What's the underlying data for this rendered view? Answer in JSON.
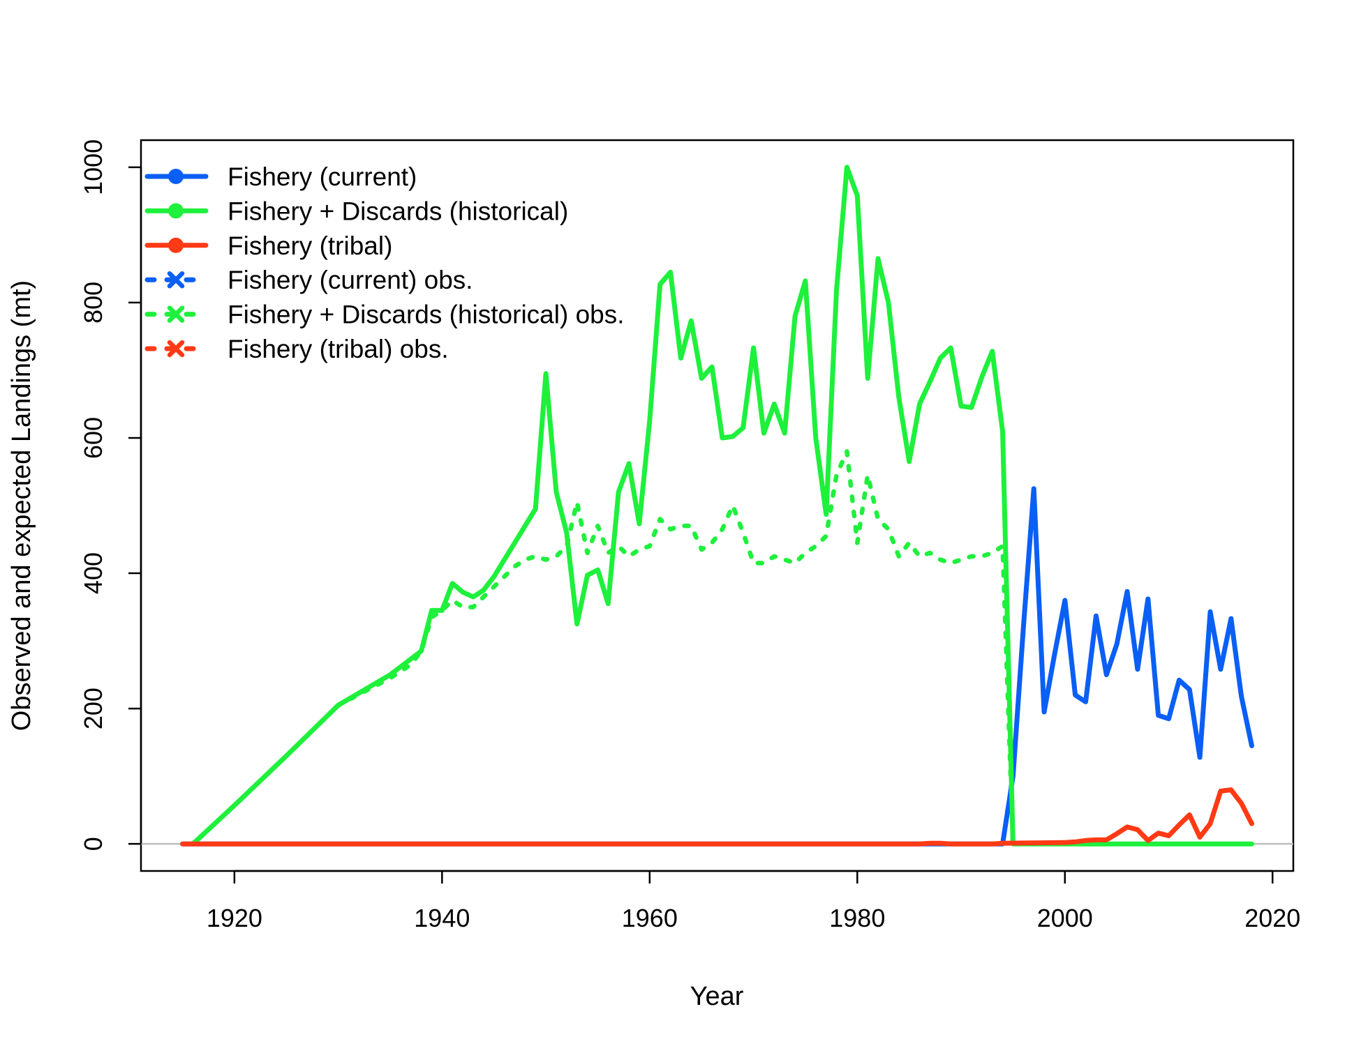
{
  "chart_data": {
    "type": "line",
    "title": "",
    "xlabel": "Year",
    "ylabel": "Observed and expected Landings (mt)",
    "xlim": [
      1911,
      2022
    ],
    "ylim": [
      -40,
      1040
    ],
    "xticks": [
      1920,
      1940,
      1960,
      1980,
      2000,
      2020
    ],
    "yticks": [
      0,
      200,
      400,
      600,
      800,
      1000
    ],
    "grid": false,
    "zero_line": true,
    "legend_position": "top-left",
    "series": [
      {
        "name": "Fishery (current)",
        "style": "solid",
        "color": "#0A5FF5",
        "x": [
          1915,
          1994,
          1995,
          1996,
          1997,
          1998,
          1999,
          2000,
          2001,
          2002,
          2003,
          2004,
          2005,
          2006,
          2007,
          2008,
          2009,
          2010,
          2011,
          2012,
          2013,
          2014,
          2015,
          2016,
          2017,
          2018
        ],
        "y": [
          0,
          0,
          100,
          320,
          525,
          195,
          280,
          360,
          220,
          210,
          337,
          250,
          295,
          373,
          258,
          362,
          190,
          185,
          242,
          228,
          128,
          343,
          258,
          333,
          218,
          145
        ]
      },
      {
        "name": "Fishery + Discards (historical)",
        "style": "solid",
        "color": "#1EF03C",
        "x": [
          1916,
          1920,
          1925,
          1930,
          1935,
          1938,
          1939,
          1940,
          1941,
          1942,
          1943,
          1944,
          1945,
          1946,
          1947,
          1948,
          1949,
          1950,
          1951,
          1952,
          1953,
          1954,
          1955,
          1956,
          1957,
          1958,
          1959,
          1960,
          1961,
          1962,
          1963,
          1964,
          1965,
          1966,
          1967,
          1968,
          1969,
          1970,
          1971,
          1972,
          1973,
          1974,
          1975,
          1976,
          1977,
          1978,
          1979,
          1980,
          1981,
          1982,
          1983,
          1984,
          1985,
          1986,
          1987,
          1988,
          1989,
          1990,
          1991,
          1992,
          1993,
          1994,
          1995,
          2018
        ],
        "y": [
          0,
          57,
          130,
          205,
          250,
          285,
          345,
          345,
          385,
          372,
          365,
          375,
          395,
          420,
          445,
          470,
          495,
          695,
          520,
          460,
          325,
          397,
          405,
          355,
          520,
          562,
          473,
          625,
          827,
          845,
          718,
          773,
          688,
          705,
          600,
          602,
          615,
          733,
          607,
          650,
          607,
          780,
          832,
          600,
          487,
          818,
          1000,
          958,
          688,
          865,
          800,
          660,
          565,
          650,
          683,
          718,
          733,
          647,
          645,
          690,
          728,
          610,
          0,
          0
        ]
      },
      {
        "name": "Fishery (tribal)",
        "style": "solid",
        "color": "#FF3A14",
        "x": [
          1915,
          1986,
          1987,
          1988,
          1989,
          1993,
          1994,
          2000,
          2001,
          2002,
          2003,
          2004,
          2005,
          2006,
          2007,
          2008,
          2009,
          2010,
          2011,
          2012,
          2013,
          2014,
          2015,
          2016,
          2017,
          2018
        ],
        "y": [
          0,
          0,
          1,
          1,
          0,
          0,
          1,
          2,
          3,
          5,
          6,
          6,
          15,
          25,
          21,
          5,
          16,
          12,
          28,
          43,
          10,
          30,
          78,
          80,
          60,
          30
        ]
      },
      {
        "name": "Fishery (current) obs.",
        "style": "dotted",
        "color": "#0A5FF5",
        "x": [],
        "y": []
      },
      {
        "name": "Fishery + Discards (historical) obs.",
        "style": "dotted",
        "color": "#1EF03C",
        "x": [
          1916,
          1920,
          1925,
          1930,
          1935,
          1937,
          1938,
          1939,
          1940,
          1941,
          1942,
          1943,
          1944,
          1945,
          1946,
          1947,
          1948,
          1949,
          1950,
          1951,
          1952,
          1953,
          1954,
          1955,
          1956,
          1957,
          1958,
          1959,
          1960,
          1961,
          1962,
          1963,
          1964,
          1965,
          1966,
          1967,
          1968,
          1969,
          1970,
          1971,
          1972,
          1973,
          1974,
          1975,
          1976,
          1977,
          1978,
          1979,
          1980,
          1981,
          1982,
          1983,
          1984,
          1985,
          1986,
          1987,
          1988,
          1989,
          1990,
          1991,
          1992,
          1993,
          1994,
          1995
        ],
        "y": [
          0,
          57,
          130,
          205,
          245,
          265,
          285,
          335,
          345,
          360,
          350,
          350,
          365,
          380,
          395,
          410,
          420,
          425,
          420,
          425,
          440,
          505,
          430,
          470,
          430,
          440,
          425,
          435,
          440,
          480,
          465,
          470,
          470,
          435,
          445,
          465,
          500,
          460,
          415,
          415,
          425,
          420,
          415,
          430,
          440,
          455,
          545,
          580,
          445,
          545,
          480,
          465,
          425,
          445,
          425,
          430,
          420,
          415,
          420,
          425,
          425,
          430,
          440,
          0
        ]
      },
      {
        "name": "Fishery (tribal) obs.",
        "style": "dotted",
        "color": "#FF3A14",
        "x": [],
        "y": []
      }
    ]
  }
}
